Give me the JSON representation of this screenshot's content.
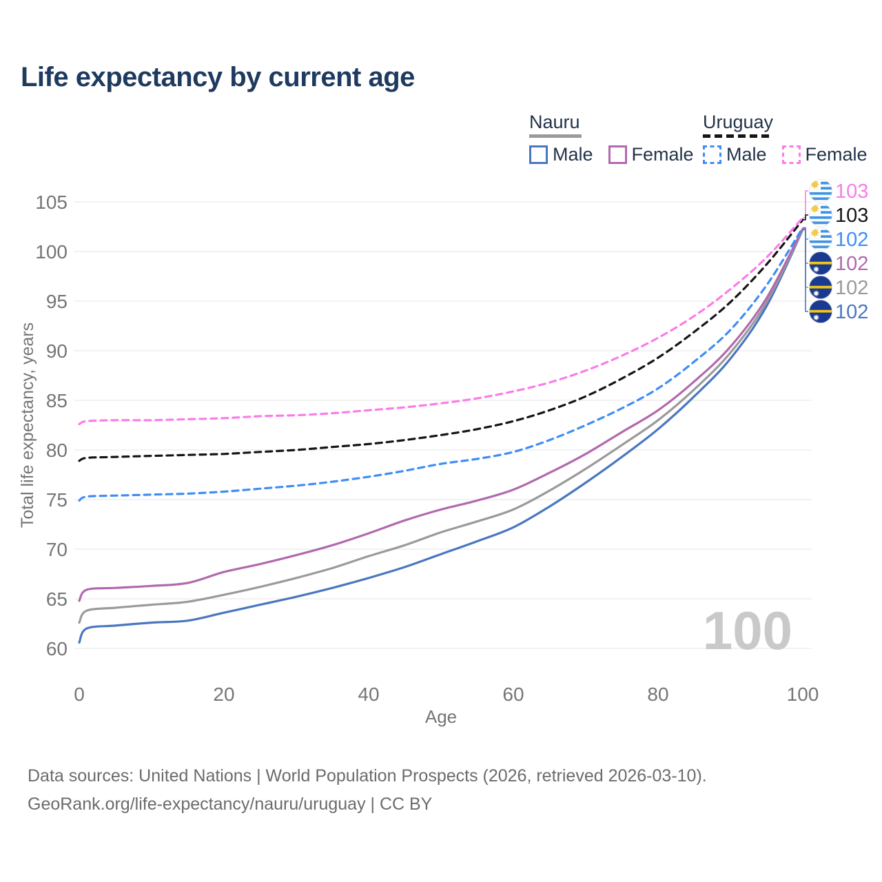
{
  "header": {
    "title": "Life expectancy by current age"
  },
  "legend": {
    "groups": [
      {
        "country": "Nauru",
        "line_style": "solid",
        "underline_color": "#9a9a9a",
        "items": [
          {
            "label": "Male",
            "color": "#4a76c0",
            "dashed": false
          },
          {
            "label": "Female",
            "color": "#b169ae",
            "dashed": false
          }
        ]
      },
      {
        "country": "Uruguay",
        "line_style": "dashed",
        "underline_color": "#151515",
        "items": [
          {
            "label": "Male",
            "color": "#3f8df5",
            "dashed": true
          },
          {
            "label": "Female",
            "color": "#fb7ce8",
            "dashed": true
          }
        ]
      }
    ]
  },
  "colors": {
    "title": "#1e3a5f",
    "axis_text": "#757575",
    "grid": "#e9e9e9",
    "watermark": "#c9c9c9"
  },
  "chart_data": {
    "type": "line",
    "title": "Life expectancy by current age",
    "xlabel": "Age",
    "ylabel": "Total life expectancy, years",
    "xlim": [
      0,
      100
    ],
    "ylim": [
      60,
      105
    ],
    "xticks": [
      0,
      20,
      40,
      60,
      80,
      100
    ],
    "yticks": [
      60,
      65,
      70,
      75,
      80,
      85,
      90,
      95,
      100,
      105
    ],
    "grid": "horizontal-only",
    "legend_position": "top-right",
    "watermark": "100",
    "x": [
      0,
      1,
      5,
      10,
      15,
      20,
      25,
      30,
      35,
      40,
      45,
      50,
      55,
      60,
      65,
      70,
      75,
      80,
      85,
      90,
      95,
      100
    ],
    "series": [
      {
        "name": "Uruguay Female",
        "country": "Uruguay",
        "sex": "Female",
        "color": "#fb7ce8",
        "dashed": true,
        "flag": "uruguay",
        "end_label": "103",
        "values": [
          82.6,
          82.9,
          83.0,
          83.0,
          83.1,
          83.2,
          83.4,
          83.5,
          83.7,
          84.0,
          84.3,
          84.7,
          85.2,
          85.9,
          86.8,
          88.0,
          89.5,
          91.3,
          93.5,
          96.2,
          99.4,
          103.4
        ]
      },
      {
        "name": "Uruguay Both sexes",
        "country": "Uruguay",
        "sex": "Both",
        "color": "#151515",
        "dashed": true,
        "flag": "uruguay",
        "end_label": "103",
        "values": [
          78.9,
          79.2,
          79.3,
          79.4,
          79.5,
          79.6,
          79.8,
          80.0,
          80.3,
          80.6,
          81.0,
          81.5,
          82.1,
          82.9,
          84.0,
          85.4,
          87.2,
          89.3,
          91.9,
          94.9,
          98.7,
          103.2
        ]
      },
      {
        "name": "Uruguay Male",
        "country": "Uruguay",
        "sex": "Male",
        "color": "#3f8df5",
        "dashed": true,
        "flag": "uruguay",
        "end_label": "102",
        "values": [
          74.9,
          75.3,
          75.4,
          75.5,
          75.6,
          75.8,
          76.1,
          76.4,
          76.8,
          77.3,
          77.9,
          78.6,
          79.1,
          79.8,
          81.0,
          82.5,
          84.2,
          86.2,
          88.9,
          92.1,
          96.6,
          102.4
        ]
      },
      {
        "name": "Nauru Female",
        "country": "Nauru",
        "sex": "Female",
        "color": "#b169ae",
        "dashed": false,
        "flag": "nauru",
        "end_label": "102",
        "values": [
          64.8,
          65.9,
          66.1,
          66.3,
          66.6,
          67.7,
          68.5,
          69.4,
          70.4,
          71.6,
          72.9,
          74.0,
          74.9,
          76.0,
          77.7,
          79.6,
          81.8,
          84.0,
          86.9,
          90.4,
          95.3,
          102.3
        ]
      },
      {
        "name": "Nauru Both sexes",
        "country": "Nauru",
        "sex": "Both",
        "color": "#9a9a9a",
        "dashed": false,
        "flag": "nauru",
        "end_label": "102",
        "values": [
          62.6,
          63.8,
          64.1,
          64.4,
          64.7,
          65.4,
          66.2,
          67.1,
          68.1,
          69.3,
          70.4,
          71.7,
          72.8,
          74.0,
          75.9,
          78.1,
          80.5,
          83.0,
          86.1,
          89.8,
          94.9,
          102.2
        ]
      },
      {
        "name": "Nauru Male",
        "country": "Nauru",
        "sex": "Male",
        "color": "#4a76c0",
        "dashed": false,
        "flag": "nauru",
        "end_label": "102",
        "values": [
          60.6,
          62.0,
          62.3,
          62.6,
          62.8,
          63.6,
          64.4,
          65.2,
          66.1,
          67.1,
          68.2,
          69.5,
          70.8,
          72.2,
          74.3,
          76.7,
          79.3,
          82.1,
          85.4,
          89.2,
          94.5,
          102.2
        ]
      }
    ]
  },
  "footer": {
    "line1": "Data sources: United Nations | World Population Prospects (2026, retrieved 2026-03-10).",
    "line2": "GeoRank.org/life-expectancy/nauru/uruguay | CC BY"
  }
}
